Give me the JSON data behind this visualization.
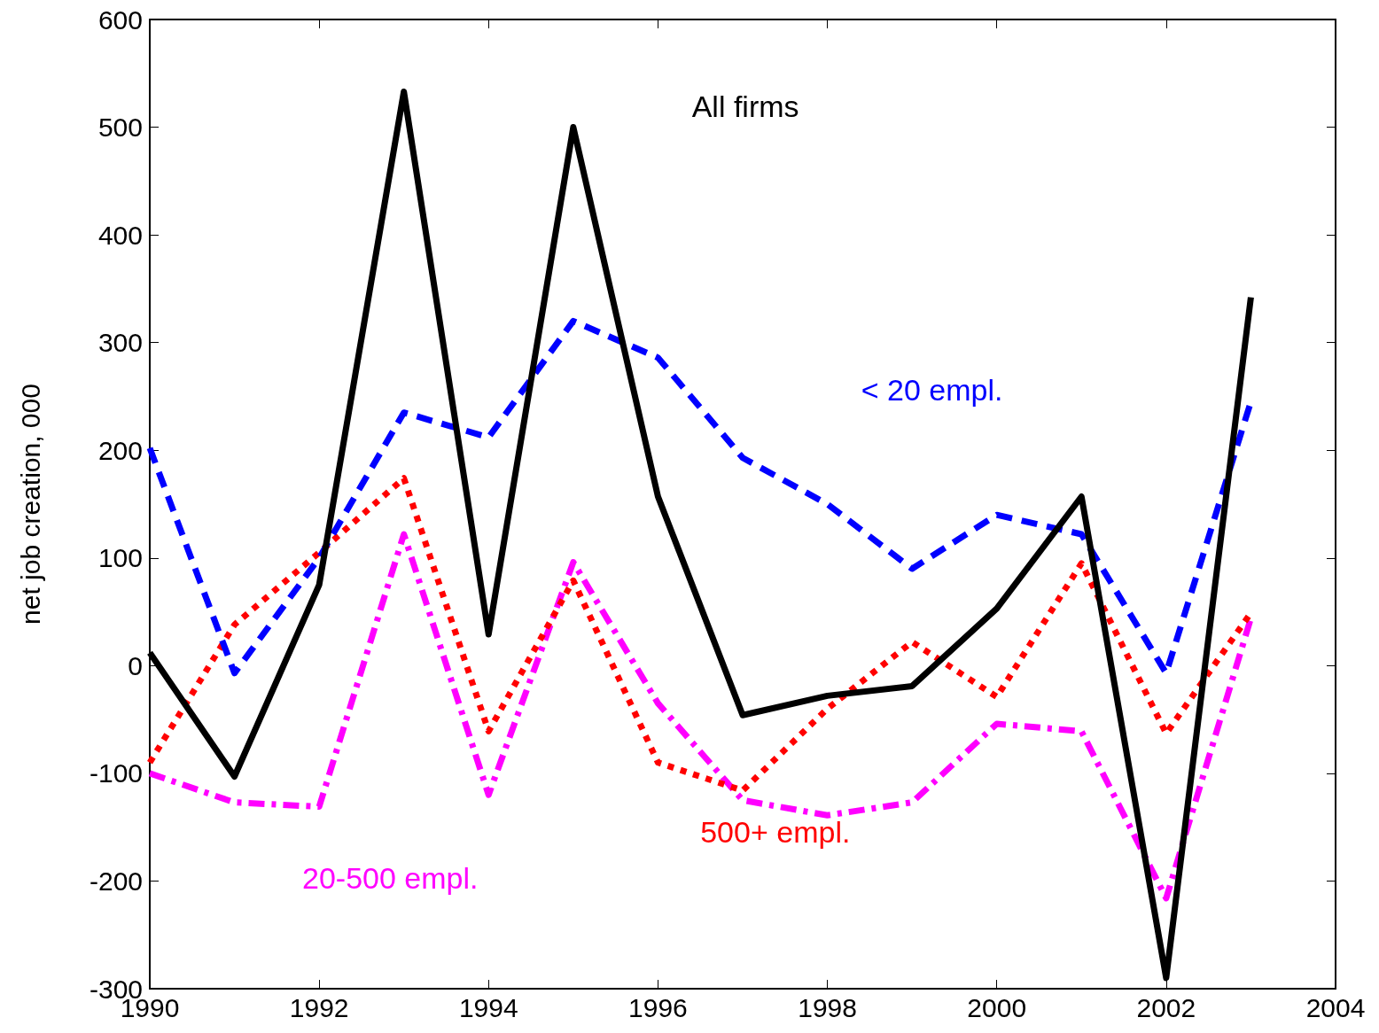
{
  "chart_data": {
    "type": "line",
    "ylabel": "net job creation, 000",
    "x": [
      1990,
      1991,
      1992,
      1993,
      1994,
      1995,
      1996,
      1997,
      1998,
      1999,
      2000,
      2001,
      2002,
      2003
    ],
    "series": [
      {
        "name": "All firms",
        "color": "#000000",
        "line_style": "solid",
        "values": [
          12,
          -103,
          75,
          533,
          29,
          500,
          157,
          -46,
          -28,
          -19,
          53,
          157,
          -290,
          342
        ]
      },
      {
        "name": "< 20 empl.",
        "color": "#0000ff",
        "line_style": "dashed",
        "values": [
          202,
          -7,
          100,
          235,
          212,
          320,
          286,
          193,
          150,
          90,
          140,
          122,
          -7,
          245
        ]
      },
      {
        "name": "500+ empl.",
        "color": "#ff0000",
        "line_style": "dotted",
        "values": [
          -90,
          38,
          105,
          174,
          -61,
          79,
          -90,
          -116,
          -40,
          22,
          -29,
          95,
          -63,
          49
        ]
      },
      {
        "name": "20-500 empl.",
        "color": "#ff00ff",
        "line_style": "dashdot",
        "values": [
          -100,
          -127,
          -131,
          122,
          -120,
          96,
          -35,
          -125,
          -139,
          -127,
          -54,
          -61,
          -216,
          44
        ]
      }
    ],
    "xlim": [
      1990,
      2004
    ],
    "xticks": [
      1990,
      1992,
      1994,
      1996,
      1998,
      2000,
      2002,
      2004
    ],
    "ylim": [
      -300,
      600
    ],
    "yticks": [
      -300,
      -200,
      -100,
      0,
      100,
      200,
      300,
      400,
      500,
      600
    ],
    "grid": false,
    "legend": false,
    "marker": "none"
  }
}
